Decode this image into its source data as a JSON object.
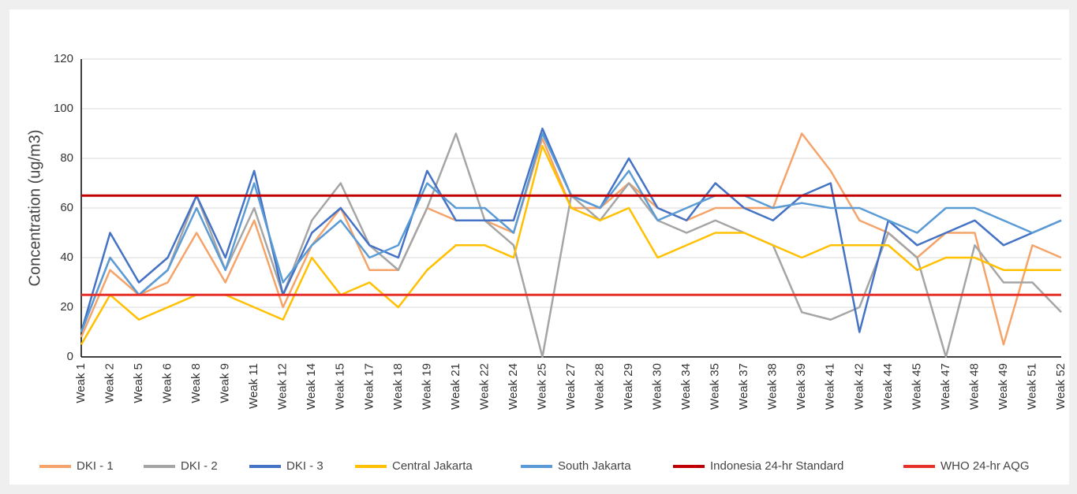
{
  "chart_data": {
    "type": "line",
    "y_label": "Concentration (ug/m3)",
    "categories": [
      "Weak  1",
      "Weak  2",
      "Weak  5",
      "Weak  6",
      "Weak  8",
      "Weak  9",
      "Weak  11",
      "Weak  12",
      "Weak  14",
      "Weak  15",
      "Weak  17",
      "Weak  18",
      "Weak  19",
      "Weak  21",
      "Weak  22",
      "Weak  24",
      "Weak  25",
      "Weak  27",
      "Weak  28",
      "Weak  29",
      "Weak  30",
      "Weak  34",
      "Weak  35",
      "Weak  37",
      "Weak  38",
      "Weak  39",
      "Weak  41",
      "Weak  42",
      "Weak  44",
      "Weak  45",
      "Weak  47",
      "Weak  48",
      "Weak  49",
      "Weak  51",
      "Weak  52"
    ],
    "series": [
      {
        "name": "DKI - 1",
        "color": "#f4a46a",
        "values": [
          8,
          35,
          25,
          30,
          50,
          30,
          55,
          20,
          45,
          60,
          35,
          35,
          60,
          55,
          55,
          50,
          88,
          60,
          60,
          70,
          60,
          55,
          60,
          60,
          60,
          90,
          75,
          55,
          50,
          40,
          50,
          50,
          5,
          45,
          40
        ]
      },
      {
        "name": "DKI - 2",
        "color": "#a5a5a5",
        "values": [
          10,
          40,
          25,
          35,
          65,
          35,
          60,
          25,
          55,
          70,
          45,
          35,
          60,
          90,
          55,
          45,
          0,
          65,
          55,
          70,
          55,
          50,
          55,
          50,
          45,
          18,
          15,
          20,
          50,
          40,
          0,
          45,
          30,
          30,
          18
        ]
      },
      {
        "name": "DKI - 3",
        "color": "#4472c4",
        "values": [
          10,
          50,
          30,
          40,
          65,
          40,
          75,
          25,
          50,
          60,
          45,
          40,
          75,
          55,
          55,
          55,
          92,
          65,
          60,
          80,
          60,
          55,
          70,
          60,
          55,
          65,
          70,
          10,
          55,
          45,
          50,
          55,
          45,
          50,
          55
        ]
      },
      {
        "name": "Central Jakarta",
        "color": "#ffc000",
        "values": [
          5,
          25,
          15,
          20,
          25,
          25,
          20,
          15,
          40,
          25,
          30,
          20,
          35,
          45,
          45,
          40,
          85,
          60,
          55,
          60,
          40,
          45,
          50,
          50,
          45,
          40,
          45,
          45,
          45,
          35,
          40,
          40,
          35,
          35,
          35
        ]
      },
      {
        "name": "South Jakarta",
        "color": "#5b9bd5",
        "values": [
          10,
          40,
          25,
          35,
          60,
          35,
          70,
          30,
          45,
          55,
          40,
          45,
          70,
          60,
          60,
          50,
          90,
          65,
          60,
          75,
          55,
          60,
          65,
          65,
          60,
          62,
          60,
          60,
          55,
          50,
          60,
          60,
          55,
          50,
          55
        ]
      },
      {
        "name": "Indonesia 24-hr Standard",
        "color": "#c00000",
        "values": [
          65,
          65,
          65,
          65,
          65,
          65,
          65,
          65,
          65,
          65,
          65,
          65,
          65,
          65,
          65,
          65,
          65,
          65,
          65,
          65,
          65,
          65,
          65,
          65,
          65,
          65,
          65,
          65,
          65,
          65,
          65,
          65,
          65,
          65,
          65
        ]
      },
      {
        "name": "WHO 24-hr AQG",
        "color": "#e8302a",
        "values": [
          25,
          25,
          25,
          25,
          25,
          25,
          25,
          25,
          25,
          25,
          25,
          25,
          25,
          25,
          25,
          25,
          25,
          25,
          25,
          25,
          25,
          25,
          25,
          25,
          25,
          25,
          25,
          25,
          25,
          25,
          25,
          25,
          25,
          25,
          25
        ]
      }
    ],
    "ylim": [
      0,
      120
    ],
    "yticks": [
      0,
      20,
      40,
      60,
      80,
      100,
      120
    ],
    "grid": true
  }
}
